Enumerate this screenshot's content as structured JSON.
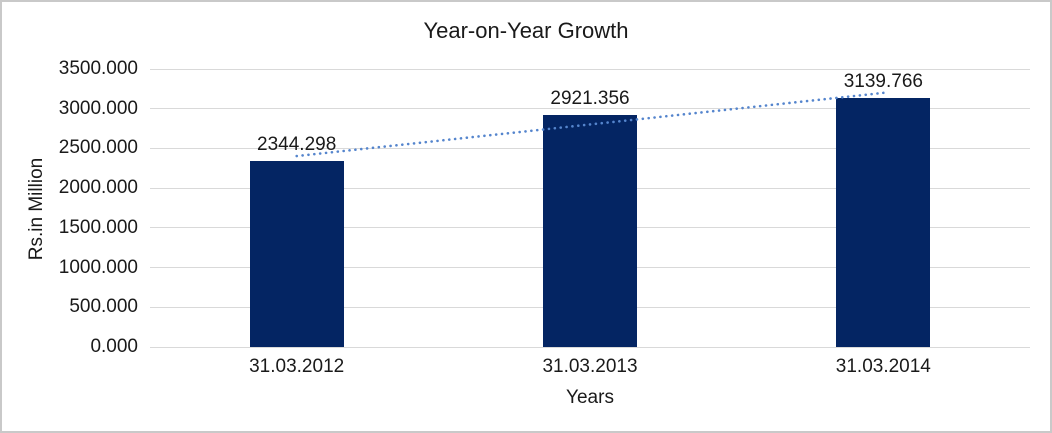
{
  "chart_data": {
    "type": "bar",
    "title": "Year-on-Year Growth",
    "categories": [
      "31.03.2012",
      "31.03.2013",
      "31.03.2014"
    ],
    "values": [
      2344.298,
      2921.356,
      3139.766
    ],
    "data_labels": [
      "2344.298",
      "2921.356",
      "3139.766"
    ],
    "xlabel": "Years",
    "ylabel": "Rs.in Million",
    "ylim": [
      0,
      3500
    ],
    "y_tick_step": 500,
    "y_tick_labels": [
      "0.000",
      "500.000",
      "1000.000",
      "1500.000",
      "2000.000",
      "2500.000",
      "3000.000",
      "3500.000"
    ],
    "grid": true,
    "legend": "none",
    "trendline": {
      "type": "linear",
      "style": "dotted"
    },
    "colors": {
      "bar": "#042563",
      "trendline": "#5585cd",
      "gridline": "#d9d9d9",
      "text": "#1a1a1a",
      "frame_border": "#c9c9c9",
      "background": "#ffffff"
    }
  }
}
